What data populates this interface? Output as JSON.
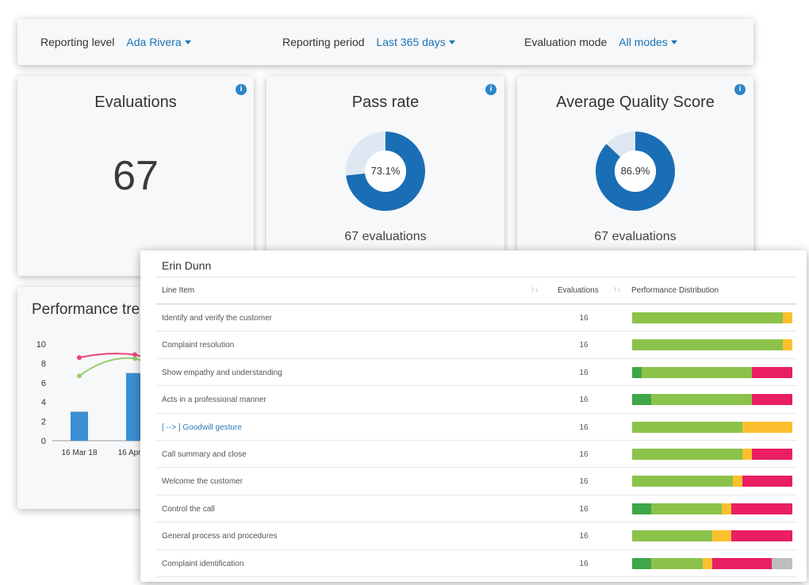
{
  "filters": [
    {
      "label": "Reporting level",
      "value": "Ada Rivera"
    },
    {
      "label": "Reporting period",
      "value": "Last 365 days"
    },
    {
      "label": "Evaluation mode",
      "value": "All modes"
    }
  ],
  "kpis": {
    "evaluations": {
      "title": "Evaluations",
      "value": "67"
    },
    "pass_rate": {
      "title": "Pass rate",
      "value_label": "73.1%",
      "fraction": 0.731,
      "sub": "67 evaluations"
    },
    "quality": {
      "title": "Average Quality Score",
      "value_label": "86.9%",
      "fraction": 0.869,
      "sub": "67 evaluations"
    }
  },
  "colors": {
    "accent": "#1a73b5",
    "donut_fill": "#1a6eb5",
    "donut_track": "#dde8f2",
    "bar": "#3b8ed2",
    "line_pink": "#e8457c",
    "line_green": "#9acd6d",
    "dark_green": "#3fa64a",
    "green": "#8bc34a",
    "yellow": "#fbc02d",
    "red": "#e91e63",
    "gray": "#bdbdbd"
  },
  "trend": {
    "title": "Performance trend",
    "chart_data": {
      "type": "bar",
      "categories": [
        "16 Mar 18",
        "16 Apr 18"
      ],
      "ylim": [
        0,
        10
      ],
      "yticks": [
        "0",
        "2",
        "4",
        "6",
        "8",
        "10"
      ],
      "values": [
        3,
        7
      ],
      "lines": [
        {
          "values": [
            8.6,
            8.9
          ]
        },
        {
          "values": [
            6.7,
            8.5
          ]
        }
      ]
    }
  },
  "table": {
    "title": "Erin Dunn",
    "headers": {
      "line_item": "Line Item",
      "evaluations": "Evaluations",
      "distribution": "Performance Distribution"
    },
    "rows": [
      {
        "item": "Identify and verify the customer",
        "count": "16",
        "link": false,
        "dist": {
          "dark_green": 0,
          "green": 94,
          "yellow": 6,
          "red": 0,
          "gray": 0
        }
      },
      {
        "item": "Complaint resolution",
        "count": "16",
        "link": false,
        "dist": {
          "dark_green": 0,
          "green": 94,
          "yellow": 6,
          "red": 0,
          "gray": 0
        }
      },
      {
        "item": "Show empathy and understanding",
        "count": "16",
        "link": false,
        "dist": {
          "dark_green": 6,
          "green": 69,
          "yellow": 0,
          "red": 25,
          "gray": 0
        }
      },
      {
        "item": "Acts in a professional manner",
        "count": "16",
        "link": false,
        "dist": {
          "dark_green": 12,
          "green": 63,
          "yellow": 0,
          "red": 25,
          "gray": 0
        }
      },
      {
        "item": "[ --> ] Goodwill gesture",
        "count": "16",
        "link": true,
        "dist": {
          "dark_green": 0,
          "green": 69,
          "yellow": 31,
          "red": 0,
          "gray": 0
        }
      },
      {
        "item": "Call summary and close",
        "count": "16",
        "link": false,
        "dist": {
          "dark_green": 0,
          "green": 69,
          "yellow": 6,
          "red": 25,
          "gray": 0
        }
      },
      {
        "item": "Welcome the customer",
        "count": "16",
        "link": false,
        "dist": {
          "dark_green": 0,
          "green": 63,
          "yellow": 6,
          "red": 31,
          "gray": 0
        }
      },
      {
        "item": "Control the call",
        "count": "16",
        "link": false,
        "dist": {
          "dark_green": 12,
          "green": 44,
          "yellow": 6,
          "red": 38,
          "gray": 0
        }
      },
      {
        "item": "General process and procedures",
        "count": "16",
        "link": false,
        "dist": {
          "dark_green": 0,
          "green": 50,
          "yellow": 12,
          "red": 38,
          "gray": 0
        }
      },
      {
        "item": "Complaint identification",
        "count": "16",
        "link": false,
        "dist": {
          "dark_green": 12,
          "green": 32,
          "yellow": 6,
          "red": 37,
          "gray": 13
        }
      }
    ]
  }
}
